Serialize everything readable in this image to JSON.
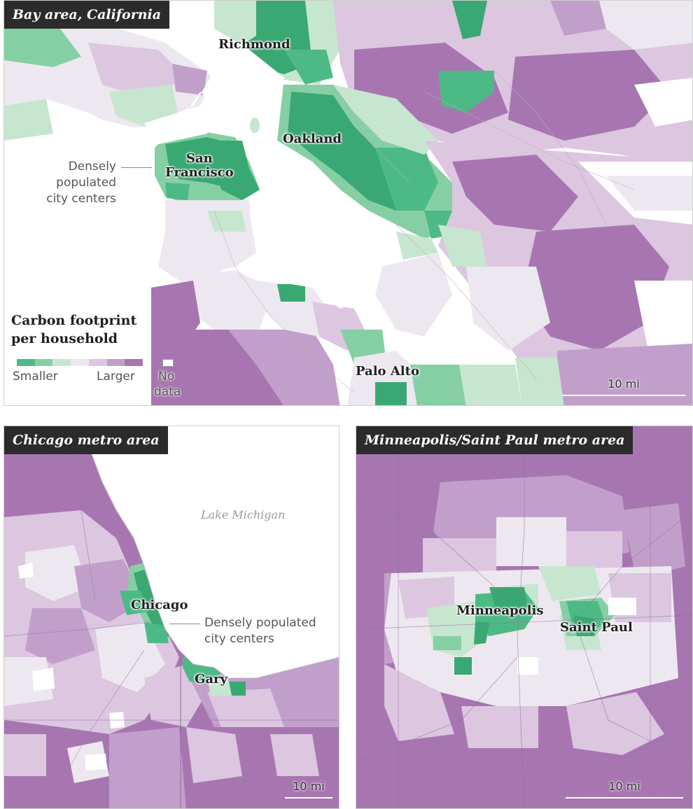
{
  "colors": {
    "scale": [
      "#4dba86",
      "#86cfa4",
      "#c7e6cf",
      "#ede8f0",
      "#dcc6e0",
      "#c29fcb",
      "#a776b1"
    ],
    "dark_green": "#3aa872",
    "no_data": "#ffffff",
    "water": "#ffffff",
    "title_bg": "#2b2b2b"
  },
  "bay": {
    "title": "Bay area, California",
    "cities": {
      "richmond": "Richmond",
      "oakland": "Oakland",
      "sf_line1": "San",
      "sf_line2": "Francisco",
      "palo_alto": "Palo Alto"
    },
    "note_line1": "Densely",
    "note_line2": "populated",
    "note_line3": "city centers",
    "scale": "10 mi"
  },
  "legend": {
    "title_line1": "Carbon footprint",
    "title_line2": "per household",
    "smaller": "Smaller",
    "larger": "Larger",
    "no_data_line1": "No",
    "no_data_line2": "data"
  },
  "chicago": {
    "title": "Chicago metro area",
    "lake": "Lake Michigan",
    "cities": {
      "chicago": "Chicago",
      "gary": "Gary"
    },
    "note_line1": "Densely populated",
    "note_line2": "city centers",
    "scale": "10 mi"
  },
  "minneapolis": {
    "title": "Minneapolis/Saint Paul metro area",
    "cities": {
      "minneapolis": "Minneapolis",
      "saint_paul": "Saint Paul"
    },
    "scale": "10 mi"
  }
}
